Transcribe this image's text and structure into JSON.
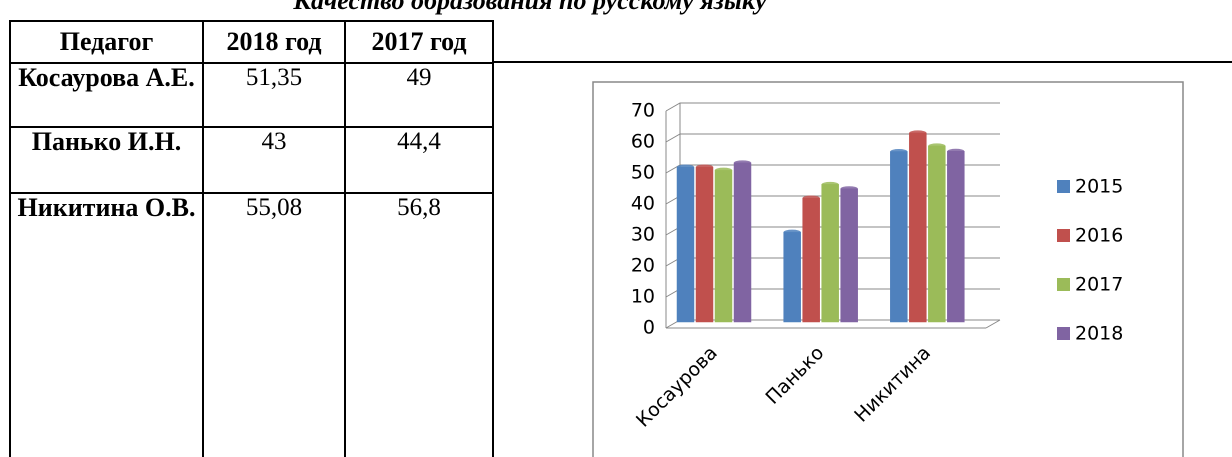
{
  "title": "Качество образования по русскому языку",
  "table": {
    "header": [
      "Педагог",
      "2018 год",
      "2017 год"
    ],
    "rows": [
      [
        "Косаурова А.Е.",
        "51,35",
        "49"
      ],
      [
        "Панько И.Н.",
        "43",
        "44,4"
      ],
      [
        "Никитина О.В.",
        "55,08",
        "56,8"
      ]
    ]
  },
  "chart_data": {
    "type": "bar",
    "categories": [
      "Косаурова",
      "Панько",
      "Никитина"
    ],
    "series": [
      {
        "name": "2015",
        "color": "#4f81bd",
        "values": [
          50,
          29,
          55
        ]
      },
      {
        "name": "2016",
        "color": "#c0504d",
        "values": [
          50,
          40,
          61
        ]
      },
      {
        "name": "2017",
        "color": "#9bbb59",
        "values": [
          49,
          44.4,
          56.8
        ]
      },
      {
        "name": "2018",
        "color": "#8064a2",
        "values": [
          51.35,
          43,
          55.08
        ]
      }
    ],
    "ylim": [
      0,
      70
    ],
    "yticks": [
      0,
      10,
      20,
      30,
      40,
      50,
      60,
      70
    ],
    "grid": true,
    "legend": "right"
  }
}
